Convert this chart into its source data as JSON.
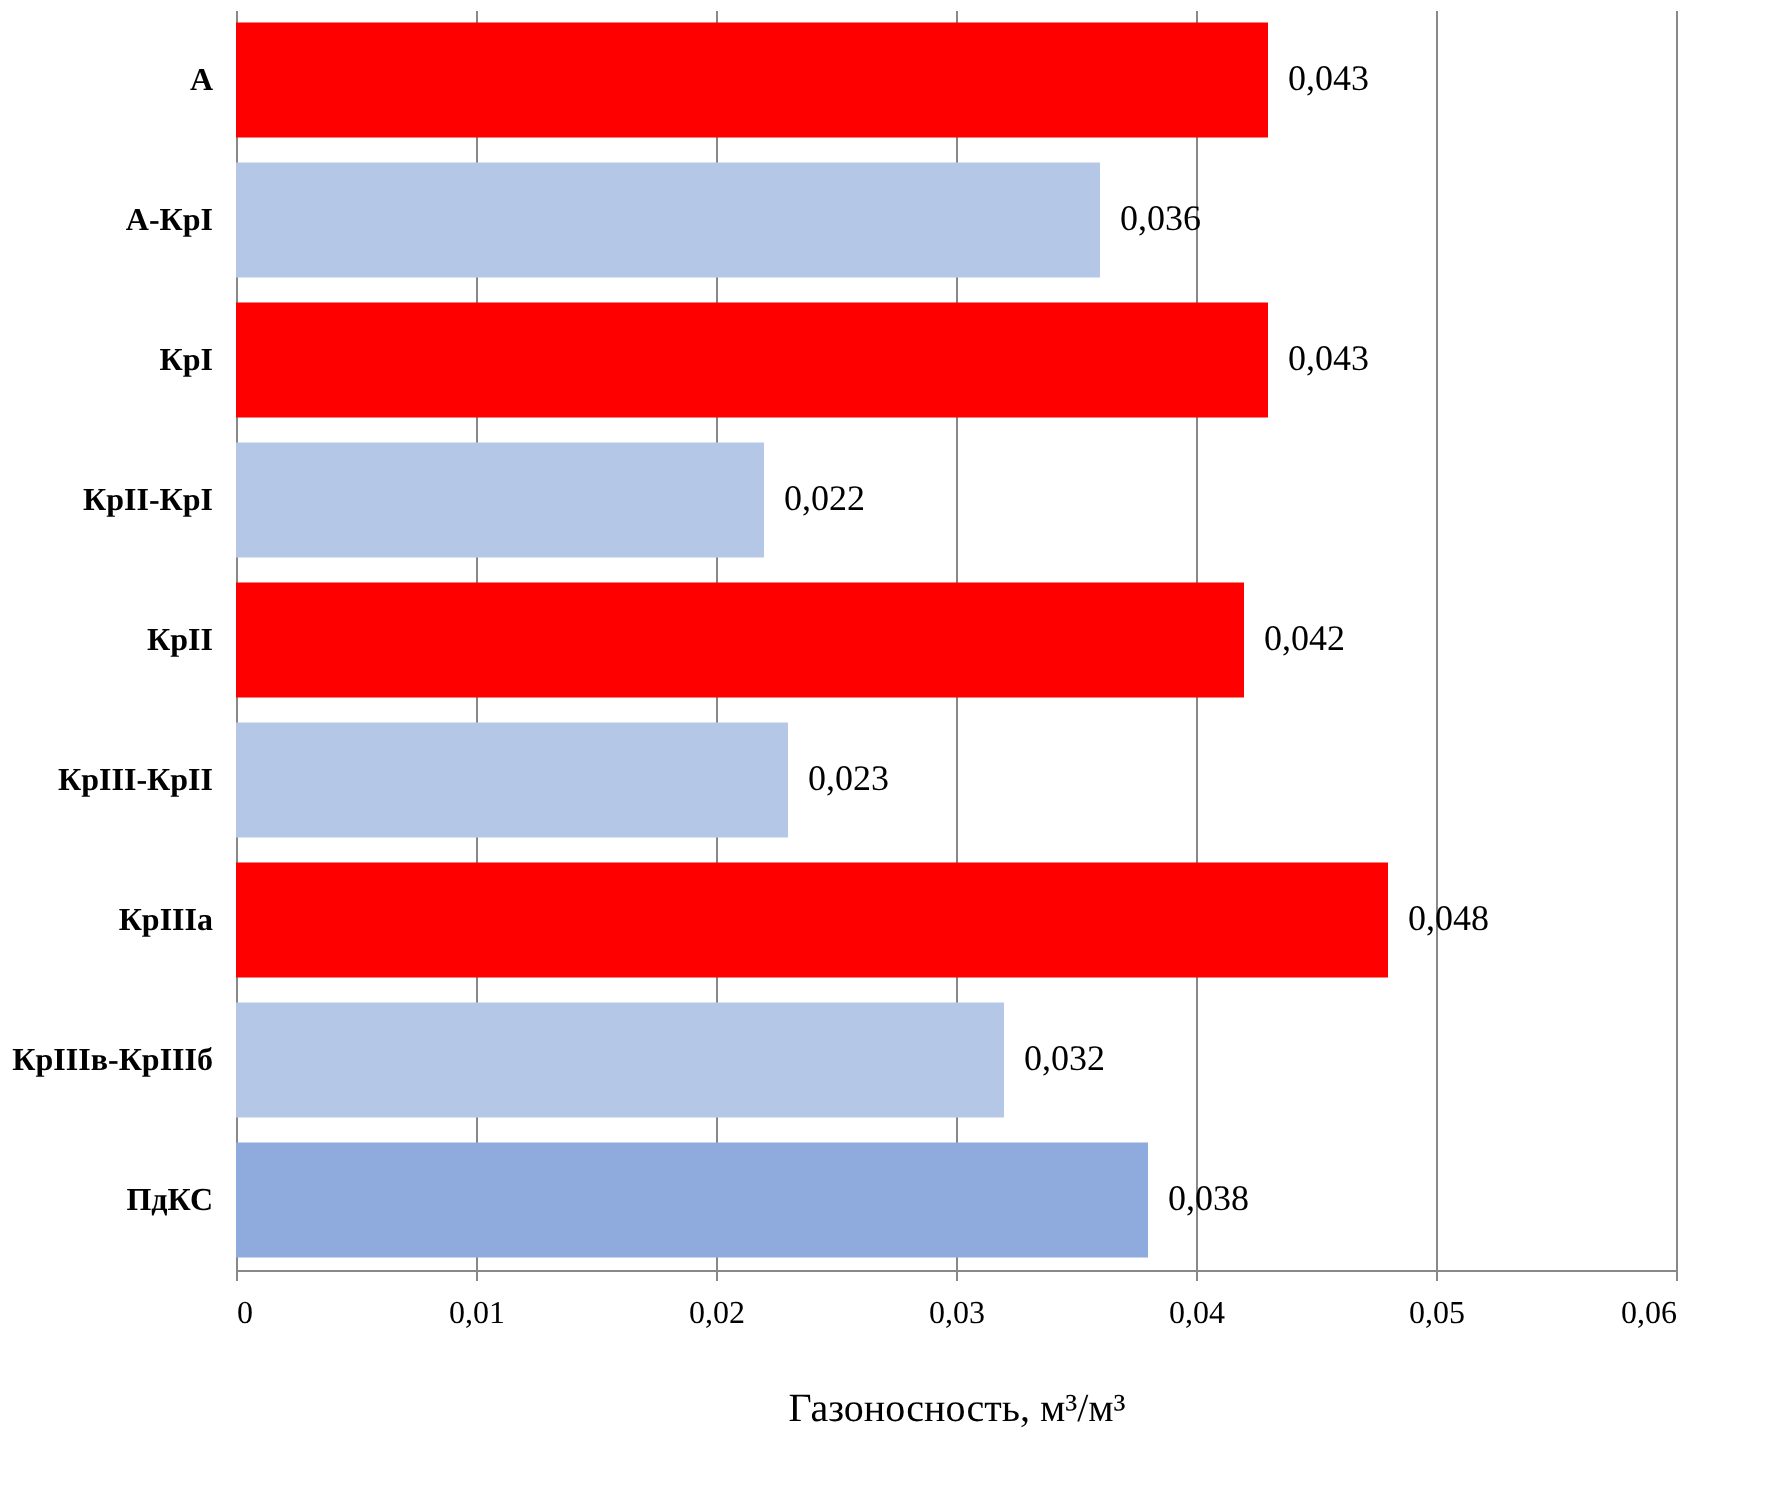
{
  "chart_data": {
    "type": "bar",
    "orientation": "horizontal",
    "xlabel": "Газоносность, м³/м³",
    "categories": [
      "А",
      "А-КрI",
      "КрI",
      "КрII-КрI",
      "КрII",
      "КрIII-КрII",
      "КрIIIа",
      "КрIIIв-КрIIIб",
      "ПдКС"
    ],
    "values": [
      0.043,
      0.036,
      0.043,
      0.022,
      0.042,
      0.023,
      0.048,
      0.032,
      0.038
    ],
    "colors": [
      "#ff0000",
      "#b4c7e7",
      "#ff0000",
      "#b4c7e7",
      "#ff0000",
      "#b4c7e7",
      "#ff0000",
      "#b4c7e7",
      "#8faadc"
    ],
    "value_labels": [
      "0,043",
      "0,036",
      "0,043",
      "0,022",
      "0,042",
      "0,023",
      "0,048",
      "0,032",
      "0,038"
    ],
    "xlim": [
      0,
      0.06
    ],
    "xticks": [
      0,
      {
        "value": 0.01,
        "label": "0,01"
      },
      {
        "value": 0.02,
        "label": "0,02"
      },
      {
        "value": 0.03,
        "label": "0,03"
      },
      {
        "value": 0.04,
        "label": "0,04"
      },
      {
        "value": 0.05,
        "label": "0,05"
      },
      {
        "value": 0.06,
        "label": "0,06"
      }
    ],
    "grid": "x",
    "legend": false
  }
}
